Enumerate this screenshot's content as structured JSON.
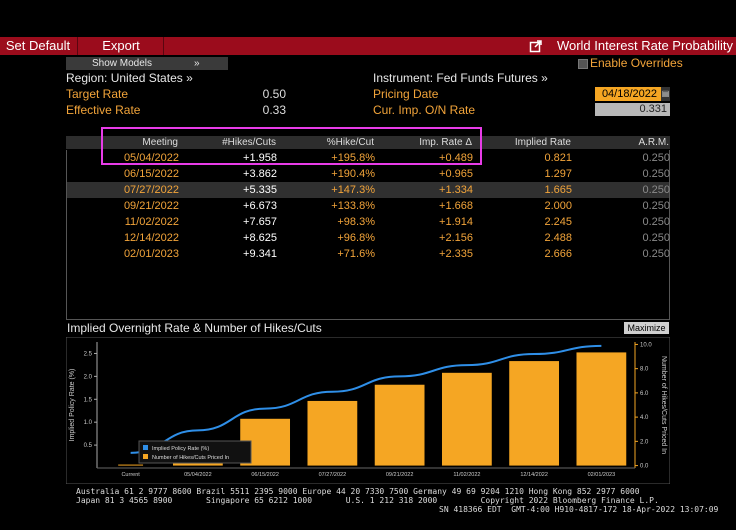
{
  "toolbar": {
    "set_default": "Set Default",
    "export": "Export",
    "title": "World Interest Rate Probability"
  },
  "controls": {
    "show_models": "Show Models",
    "show_models_arrow": "»",
    "enable_overrides": "Enable Overrides"
  },
  "header": {
    "region": "Region: United States »",
    "instrument": "Instrument: Fed Funds Futures »",
    "target_rate_label": "Target Rate",
    "target_rate_value": "0.50",
    "effective_rate_label": "Effective Rate",
    "effective_rate_value": "0.33",
    "pricing_date_label": "Pricing Date",
    "pricing_date_value": "04/18/2022",
    "cur_imp_label": "Cur. Imp. O/N Rate",
    "cur_imp_value": "0.331"
  },
  "table": {
    "columns": [
      "Meeting",
      "#Hikes/Cuts",
      "%Hike/Cut",
      "Imp. Rate Δ",
      "Implied Rate",
      "A.R.M."
    ],
    "rows": [
      {
        "meeting": "05/04/2022",
        "hikes": "+1.958",
        "pct": "+195.8%",
        "delta": "+0.489",
        "rate": "0.821",
        "arm": "0.250"
      },
      {
        "meeting": "06/15/2022",
        "hikes": "+3.862",
        "pct": "+190.4%",
        "delta": "+0.965",
        "rate": "1.297",
        "arm": "0.250"
      },
      {
        "meeting": "07/27/2022",
        "hikes": "+5.335",
        "pct": "+147.3%",
        "delta": "+1.334",
        "rate": "1.665",
        "arm": "0.250"
      },
      {
        "meeting": "09/21/2022",
        "hikes": "+6.673",
        "pct": "+133.8%",
        "delta": "+1.668",
        "rate": "2.000",
        "arm": "0.250"
      },
      {
        "meeting": "11/02/2022",
        "hikes": "+7.657",
        "pct": "+98.3%",
        "delta": "+1.914",
        "rate": "2.245",
        "arm": "0.250"
      },
      {
        "meeting": "12/14/2022",
        "hikes": "+8.625",
        "pct": "+96.8%",
        "delta": "+2.156",
        "rate": "2.488",
        "arm": "0.250"
      },
      {
        "meeting": "02/01/2023",
        "hikes": "+9.341",
        "pct": "+71.6%",
        "delta": "+2.335",
        "rate": "2.666",
        "arm": "0.250"
      }
    ],
    "selected_row": 2
  },
  "chart_panel": {
    "title": "Implied Overnight Rate & Number of Hikes/Cuts",
    "maximize": "Maximize"
  },
  "chart_data": {
    "type": "bar",
    "categories": [
      "Current",
      "05/04/2022",
      "06/15/2022",
      "07/27/2022",
      "09/21/2022",
      "11/02/2022",
      "12/14/2022",
      "02/01/2023"
    ],
    "series": [
      {
        "name": "Implied Policy Rate (%)",
        "type": "line",
        "axis": "left",
        "color": "#2f8fe8",
        "values": [
          0.331,
          0.821,
          1.297,
          1.665,
          2.0,
          2.245,
          2.488,
          2.666
        ]
      },
      {
        "name": "Number of Hikes/Cuts Priced In",
        "type": "bar",
        "axis": "right",
        "color": "#f5a623",
        "values": [
          0,
          1.958,
          3.862,
          5.335,
          6.673,
          7.657,
          8.625,
          9.341
        ]
      }
    ],
    "ylabel_left": "Implied Policy Rate (%)",
    "ylabel_right": "Number of Hikes/Cuts Priced In",
    "ylim_left": [
      0,
      2.75
    ],
    "yticks_left": [
      "0.5",
      "1.0",
      "1.5",
      "2.0",
      "2.5"
    ],
    "ylim_right": [
      -0.2,
      10.2
    ],
    "yticks_right": [
      "0.0",
      "2.0",
      "4.0",
      "6.0",
      "8.0",
      "10.0"
    ],
    "legend_position": "bottom-left",
    "grid": false
  },
  "footer": {
    "line1": "Australia 61 2 9777 8600 Brazil 5511 2395 9000 Europe 44 20 7330 7500 Germany 49 69 9204 1210 Hong Kong 852 2977 6000",
    "line2": "Japan 81 3 4565 8900       Singapore 65 6212 1000       U.S. 1 212 318 2000         Copyright 2022 Bloomberg Finance L.P.",
    "line3": "SN 418366 EDT  GMT-4:00 H910-4817-172 18-Apr-2022 13:07:09"
  },
  "colors": {
    "toolbar_bg": "#9b0c1c",
    "accent_orange": "#f5a623",
    "line_blue": "#2f8fe8",
    "highlight_magenta": "#e83ce8"
  }
}
